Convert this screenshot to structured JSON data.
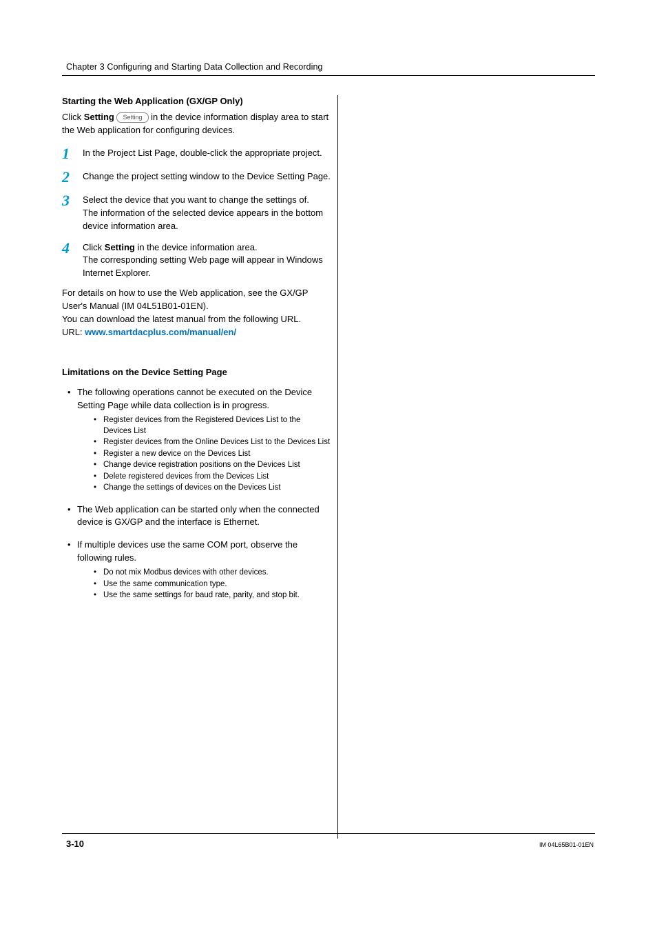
{
  "header": {
    "chapter": "Chapter 3  Configuring and Starting Data Collection and Recording"
  },
  "section1": {
    "title": "Starting the Web Application (GX/GP Only)",
    "intro_pre": "Click ",
    "intro_bold": "Setting",
    "btn_label": "Setting",
    "intro_post": " in the device information display area to start the Web application for configuring devices.",
    "steps": [
      {
        "num": "1",
        "text": "In the Project List Page, double-click the appropriate project."
      },
      {
        "num": "2",
        "text": "Change the project setting window to the Device Setting Page."
      },
      {
        "num": "3",
        "text_a": "Select the device that you want to change the settings of.",
        "text_b": "The information of the selected device appears in the bottom device information area."
      },
      {
        "num": "4",
        "pre": "Click ",
        "bold": "Setting",
        "post": " in the device information area.",
        "line2": "The corresponding setting Web page will appear in Windows Internet Explorer."
      }
    ],
    "after_a": "For details on how to use the Web application, see the GX/GP User's Manual (IM 04L51B01-01EN).",
    "after_b": "You can download the latest manual from the following URL.",
    "url_label": "URL: ",
    "url": "www.smartdacplus.com/manual/en/"
  },
  "section2": {
    "title": "Limitations on the Device Setting Page",
    "items": [
      {
        "text": "The following operations cannot be executed on the Device Setting Page while data collection is in progress.",
        "subs": [
          "Register devices from the Registered Devices List to the Devices List",
          "Register devices from the Online Devices List to the Devices List",
          "Register a new device on the Devices List",
          "Change device registration positions on the Devices List",
          "Delete registered devices from the Devices List",
          "Change the settings of devices on the Devices List"
        ]
      },
      {
        "text": "The Web application can be started only when the connected device is GX/GP and the interface is Ethernet."
      },
      {
        "text": "If multiple devices use the same COM port, observe the following rules.",
        "subs": [
          "Do not mix Modbus devices with other devices.",
          "Use the same communication type.",
          "Use the same settings for baud rate, parity, and stop bit."
        ]
      }
    ]
  },
  "footer": {
    "page": "3-10",
    "docid": "IM 04L65B01-01EN"
  }
}
